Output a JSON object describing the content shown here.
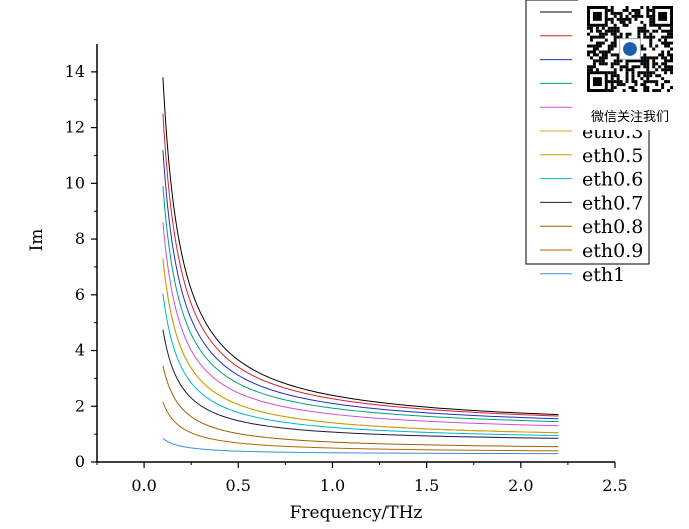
{
  "chart_data": {
    "type": "line",
    "title": "",
    "xlabel": "Frequency/THz",
    "ylabel": "Im",
    "xlim": [
      -0.25,
      2.5
    ],
    "ylim": [
      0,
      15
    ],
    "x_ticks": [
      "0.0",
      "0.5",
      "1.0",
      "1.5",
      "2.0",
      "2.5"
    ],
    "y_ticks": [
      "0",
      "2",
      "4",
      "6",
      "8",
      "10",
      "12",
      "14"
    ],
    "grid": false,
    "legend_position": "top-right",
    "series": [
      {
        "name": "eth0.3",
        "color": "#e8a030",
        "start": 7.3,
        "end": 1.05
      },
      {
        "name": "eth0.5",
        "color": "#c8a000",
        "start": 7.3,
        "end": 1.05
      },
      {
        "name": "eth0.6",
        "color": "#00b4d8",
        "start": 6.05,
        "end": 0.95
      },
      {
        "name": "eth0.7",
        "color": "#1a1a40",
        "start": 4.75,
        "end": 0.85
      },
      {
        "name": "eth0.8",
        "color": "#a06000",
        "start": 3.45,
        "end": 0.55
      },
      {
        "name": "eth0.9",
        "color": "#b06a00",
        "start": 2.15,
        "end": 0.4
      },
      {
        "name": "eth1",
        "color": "#3a8fd8",
        "start": 0.85,
        "end": 0.3
      }
    ],
    "unlabeled_series": [
      {
        "color": "#000000",
        "start": 13.8,
        "end": 1.7
      },
      {
        "color": "#d8202a",
        "start": 12.5,
        "end": 1.65
      },
      {
        "color": "#2030c0",
        "start": 11.2,
        "end": 1.55
      },
      {
        "color": "#00a080",
        "start": 9.9,
        "end": 1.45
      },
      {
        "color": "#d050d0",
        "start": 8.6,
        "end": 1.3
      }
    ],
    "x_range_data": [
      0.1,
      2.2
    ]
  },
  "overlay": {
    "qr_caption": "微信关注我们"
  }
}
